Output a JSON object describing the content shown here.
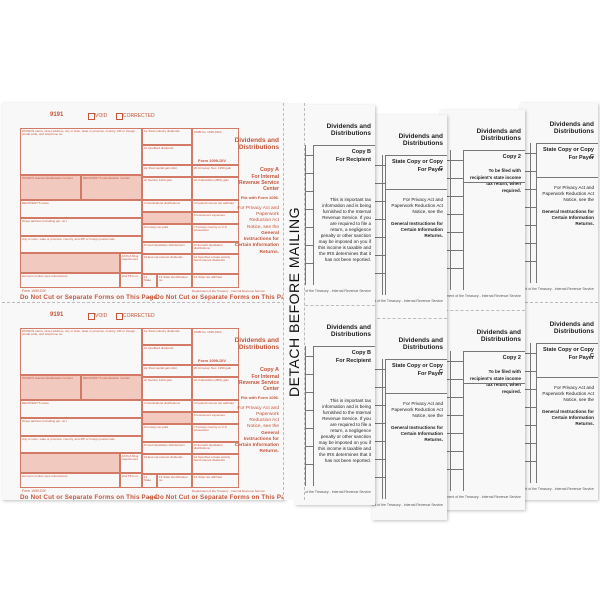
{
  "colors": {
    "form_red": "#c4553a",
    "shade": "#f1c9bf",
    "text_black": "#222222",
    "paper": "#f9f8f8"
  },
  "copy_a": {
    "form_code": "9191",
    "void_label": "VOID",
    "corrected_label": "CORRECTED",
    "omb": "OMB No. 1545-0110",
    "form_name": "Form 1099-DIV",
    "title": "Dividends and Distributions",
    "copy_label": "Copy A",
    "copy_for": "For Internal Revenue Service Center",
    "file_with": "File with Form 1096.",
    "privacy": "For Privacy Act and Paperwork Reduction Act Notice, see the",
    "privacy_bold": "General Instructions for Certain Information Returns.",
    "footer_form": "Form 1099-DIV",
    "footer_dept": "Department of the Treasury - Internal Revenue Service",
    "warning_left": "Do Not Cut or Separate Forms on This Page",
    "warning_right": "— Do Not Cut or Separate Forms on This Page",
    "fields": [
      "PAYER'S name, street address, city or town, state or province, country, ZIP or foreign postal code, and telephone no.",
      "PAYER'S federal identification number",
      "RECIPIENT'S identification number",
      "RECIPIENT'S name",
      "Street address (including apt. no.)",
      "City or town, state or province, country, and ZIP or foreign postal code",
      "Account number (see instructions)",
      "FATCA filing requirement",
      "2nd TIN not.",
      "1a Total ordinary dividends",
      "1b Qualified dividends",
      "2a Total capital gain distr.",
      "2b Unrecap. Sec. 1250 gain",
      "2c Section 1202 gain",
      "2d Collectibles (28%) gain",
      "3 Nondividend distributions",
      "4 Federal income tax withheld",
      "5 Investment expenses",
      "6 Foreign tax paid",
      "7 Foreign country or U.S. possession",
      "8 Cash liquidation distributions",
      "9 Noncash liquidation distributions",
      "10 Exempt-interest dividends",
      "11 Specified private activity bond interest dividends",
      "12 State",
      "13 State identification no.",
      "14 State tax withheld"
    ]
  },
  "detach_label": "DETACH BEFORE MAILING",
  "copy_b": {
    "title": "Dividends and Distributions",
    "copy_label": "Copy B",
    "copy_for": "For Recipient",
    "notice": "This is important tax information and is being furnished to the Internal Revenue Service. If you are required to file a return, a negligence penalty or other sanction may be imposed on you if this income is taxable and the IRS determines that it has not been reported.",
    "footer": "Department of the Treasury - Internal Revenue Service"
  },
  "copy_c": {
    "title": "Dividends and Distributions",
    "copy_label": "State Copy or Copy C",
    "copy_for": "For Payer",
    "privacy": "For Privacy Act and Paperwork Reduction Act Notice, see the",
    "privacy_bold": "General Instructions for Certain Information Returns.",
    "footer": "Department of the Treasury - Internal Revenue Service"
  },
  "copy_2": {
    "title": "Dividends and Distributions",
    "copy_label": "Copy 2",
    "copy_for": "To be filed with recipient's state income tax return, when required.",
    "footer": "Department of the Treasury - Internal Revenue Service"
  }
}
